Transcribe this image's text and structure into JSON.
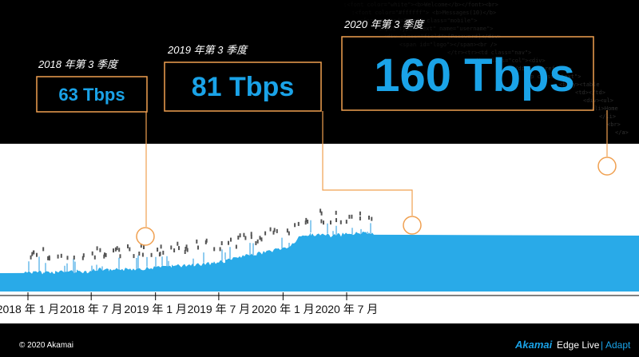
{
  "chart_data": {
    "type": "area",
    "x_ticks": [
      "2018 年 1 月",
      "2018 年 7 月",
      "2019 年 1 月",
      "2019 年 7 月",
      "2020 年 1 月",
      "2020 年 7 月"
    ],
    "annotations": [
      {
        "period": "2018 年第 3 季度",
        "value": "63 Tbps",
        "date": "2018-08",
        "tbps": 63
      },
      {
        "period": "2019 年第 3 季度",
        "value": "81 Tbps",
        "date": "2019-09",
        "tbps": 81
      },
      {
        "period": "2020 年第 3 季度",
        "value": "160 Tbps",
        "date": "2020-08",
        "tbps": 160
      }
    ],
    "series": [
      {
        "x": [
          "2018-01",
          "2018-02",
          "2018-03",
          "2018-04",
          "2018-05",
          "2018-06",
          "2018-07",
          "2018-08",
          "2018-09",
          "2018-10",
          "2018-11",
          "2018-12",
          "2019-01",
          "2019-02",
          "2019-03",
          "2019-04",
          "2019-05",
          "2019-06",
          "2019-07",
          "2019-08",
          "2019-09",
          "2019-10",
          "2019-11",
          "2019-12",
          "2020-01",
          "2020-02",
          "2020-03",
          "2020-04",
          "2020-05",
          "2020-06",
          "2020-07",
          "2020-08",
          "2020-09",
          "2020-10"
        ],
        "y": [
          32,
          33,
          33,
          34,
          34,
          35,
          35,
          38,
          37,
          38,
          39,
          40,
          41,
          42,
          44,
          45,
          47,
          48,
          50,
          53,
          58,
          62,
          66,
          70,
          74,
          78,
          95,
          100,
          98,
          97,
          99,
          101,
          102,
          100
        ]
      }
    ]
  },
  "footer": {
    "copyright": "© 2020 Akamai",
    "brand": "Akamai",
    "product": "Edge Live",
    "divider": "|",
    "subproduct": "Adapt"
  },
  "colors": {
    "accent": "#1aa3e8",
    "callout": "#f0a050",
    "fill": "#29aae8"
  }
}
